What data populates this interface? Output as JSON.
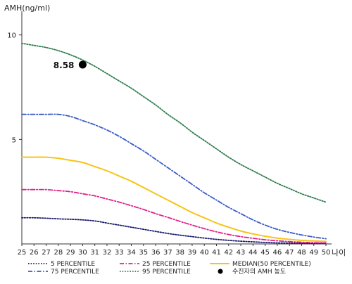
{
  "chart_data": {
    "type": "line",
    "ylabel": "AMH(ng/ml)",
    "xlabel": "나이",
    "x": [
      25,
      26,
      27,
      28,
      29,
      30,
      31,
      32,
      33,
      34,
      35,
      36,
      37,
      38,
      39,
      40,
      41,
      42,
      43,
      44,
      45,
      46,
      47,
      48,
      49,
      50
    ],
    "xlim": [
      25,
      50
    ],
    "ylim": [
      0,
      11
    ],
    "yticks": [
      5,
      10
    ],
    "grid": false,
    "legend_position": "bottom",
    "series": [
      {
        "name": "5 PERCENTILE",
        "style": "dotted",
        "color": "#1a1a6e",
        "values": [
          1.25,
          1.25,
          1.23,
          1.2,
          1.18,
          1.15,
          1.1,
          1.0,
          0.9,
          0.8,
          0.7,
          0.6,
          0.5,
          0.42,
          0.35,
          0.28,
          0.22,
          0.17,
          0.13,
          0.1,
          0.07,
          0.05,
          0.04,
          0.03,
          0.02,
          0.02
        ]
      },
      {
        "name": "75 PERCENTILE",
        "style": "dashdot",
        "color": "#3a5bc7",
        "values": [
          6.2,
          6.2,
          6.2,
          6.2,
          6.1,
          5.9,
          5.7,
          5.45,
          5.15,
          4.8,
          4.45,
          4.05,
          3.65,
          3.25,
          2.85,
          2.45,
          2.1,
          1.75,
          1.45,
          1.15,
          0.9,
          0.7,
          0.55,
          0.43,
          0.33,
          0.25
        ]
      },
      {
        "name": "25 PERCENTILE",
        "style": "dashdot",
        "color": "#e0208a",
        "values": [
          2.6,
          2.6,
          2.6,
          2.55,
          2.5,
          2.4,
          2.3,
          2.15,
          2.0,
          1.83,
          1.65,
          1.45,
          1.27,
          1.08,
          0.9,
          0.73,
          0.58,
          0.45,
          0.35,
          0.27,
          0.2,
          0.15,
          0.11,
          0.08,
          0.06,
          0.05
        ]
      },
      {
        "name": "95 PERCENTILE",
        "style": "dotted",
        "color": "#2e7d4f",
        "values": [
          9.6,
          9.5,
          9.4,
          9.25,
          9.05,
          8.8,
          8.5,
          8.15,
          7.8,
          7.45,
          7.05,
          6.65,
          6.2,
          5.8,
          5.35,
          4.95,
          4.55,
          4.15,
          3.8,
          3.5,
          3.2,
          2.9,
          2.65,
          2.4,
          2.2,
          2.0
        ]
      },
      {
        "name": "MEDIAN(50 PERCENTILE)",
        "style": "solid",
        "color": "#f5c518",
        "values": [
          4.15,
          4.15,
          4.15,
          4.1,
          4.0,
          3.9,
          3.7,
          3.5,
          3.25,
          3.0,
          2.7,
          2.4,
          2.1,
          1.8,
          1.5,
          1.25,
          1.0,
          0.8,
          0.62,
          0.48,
          0.37,
          0.28,
          0.22,
          0.17,
          0.14,
          0.12
        ]
      }
    ],
    "marker": {
      "name": "수진자의 AMH 농도",
      "x": 30,
      "y": 8.58,
      "label": "8.58",
      "color": "#000000"
    }
  }
}
